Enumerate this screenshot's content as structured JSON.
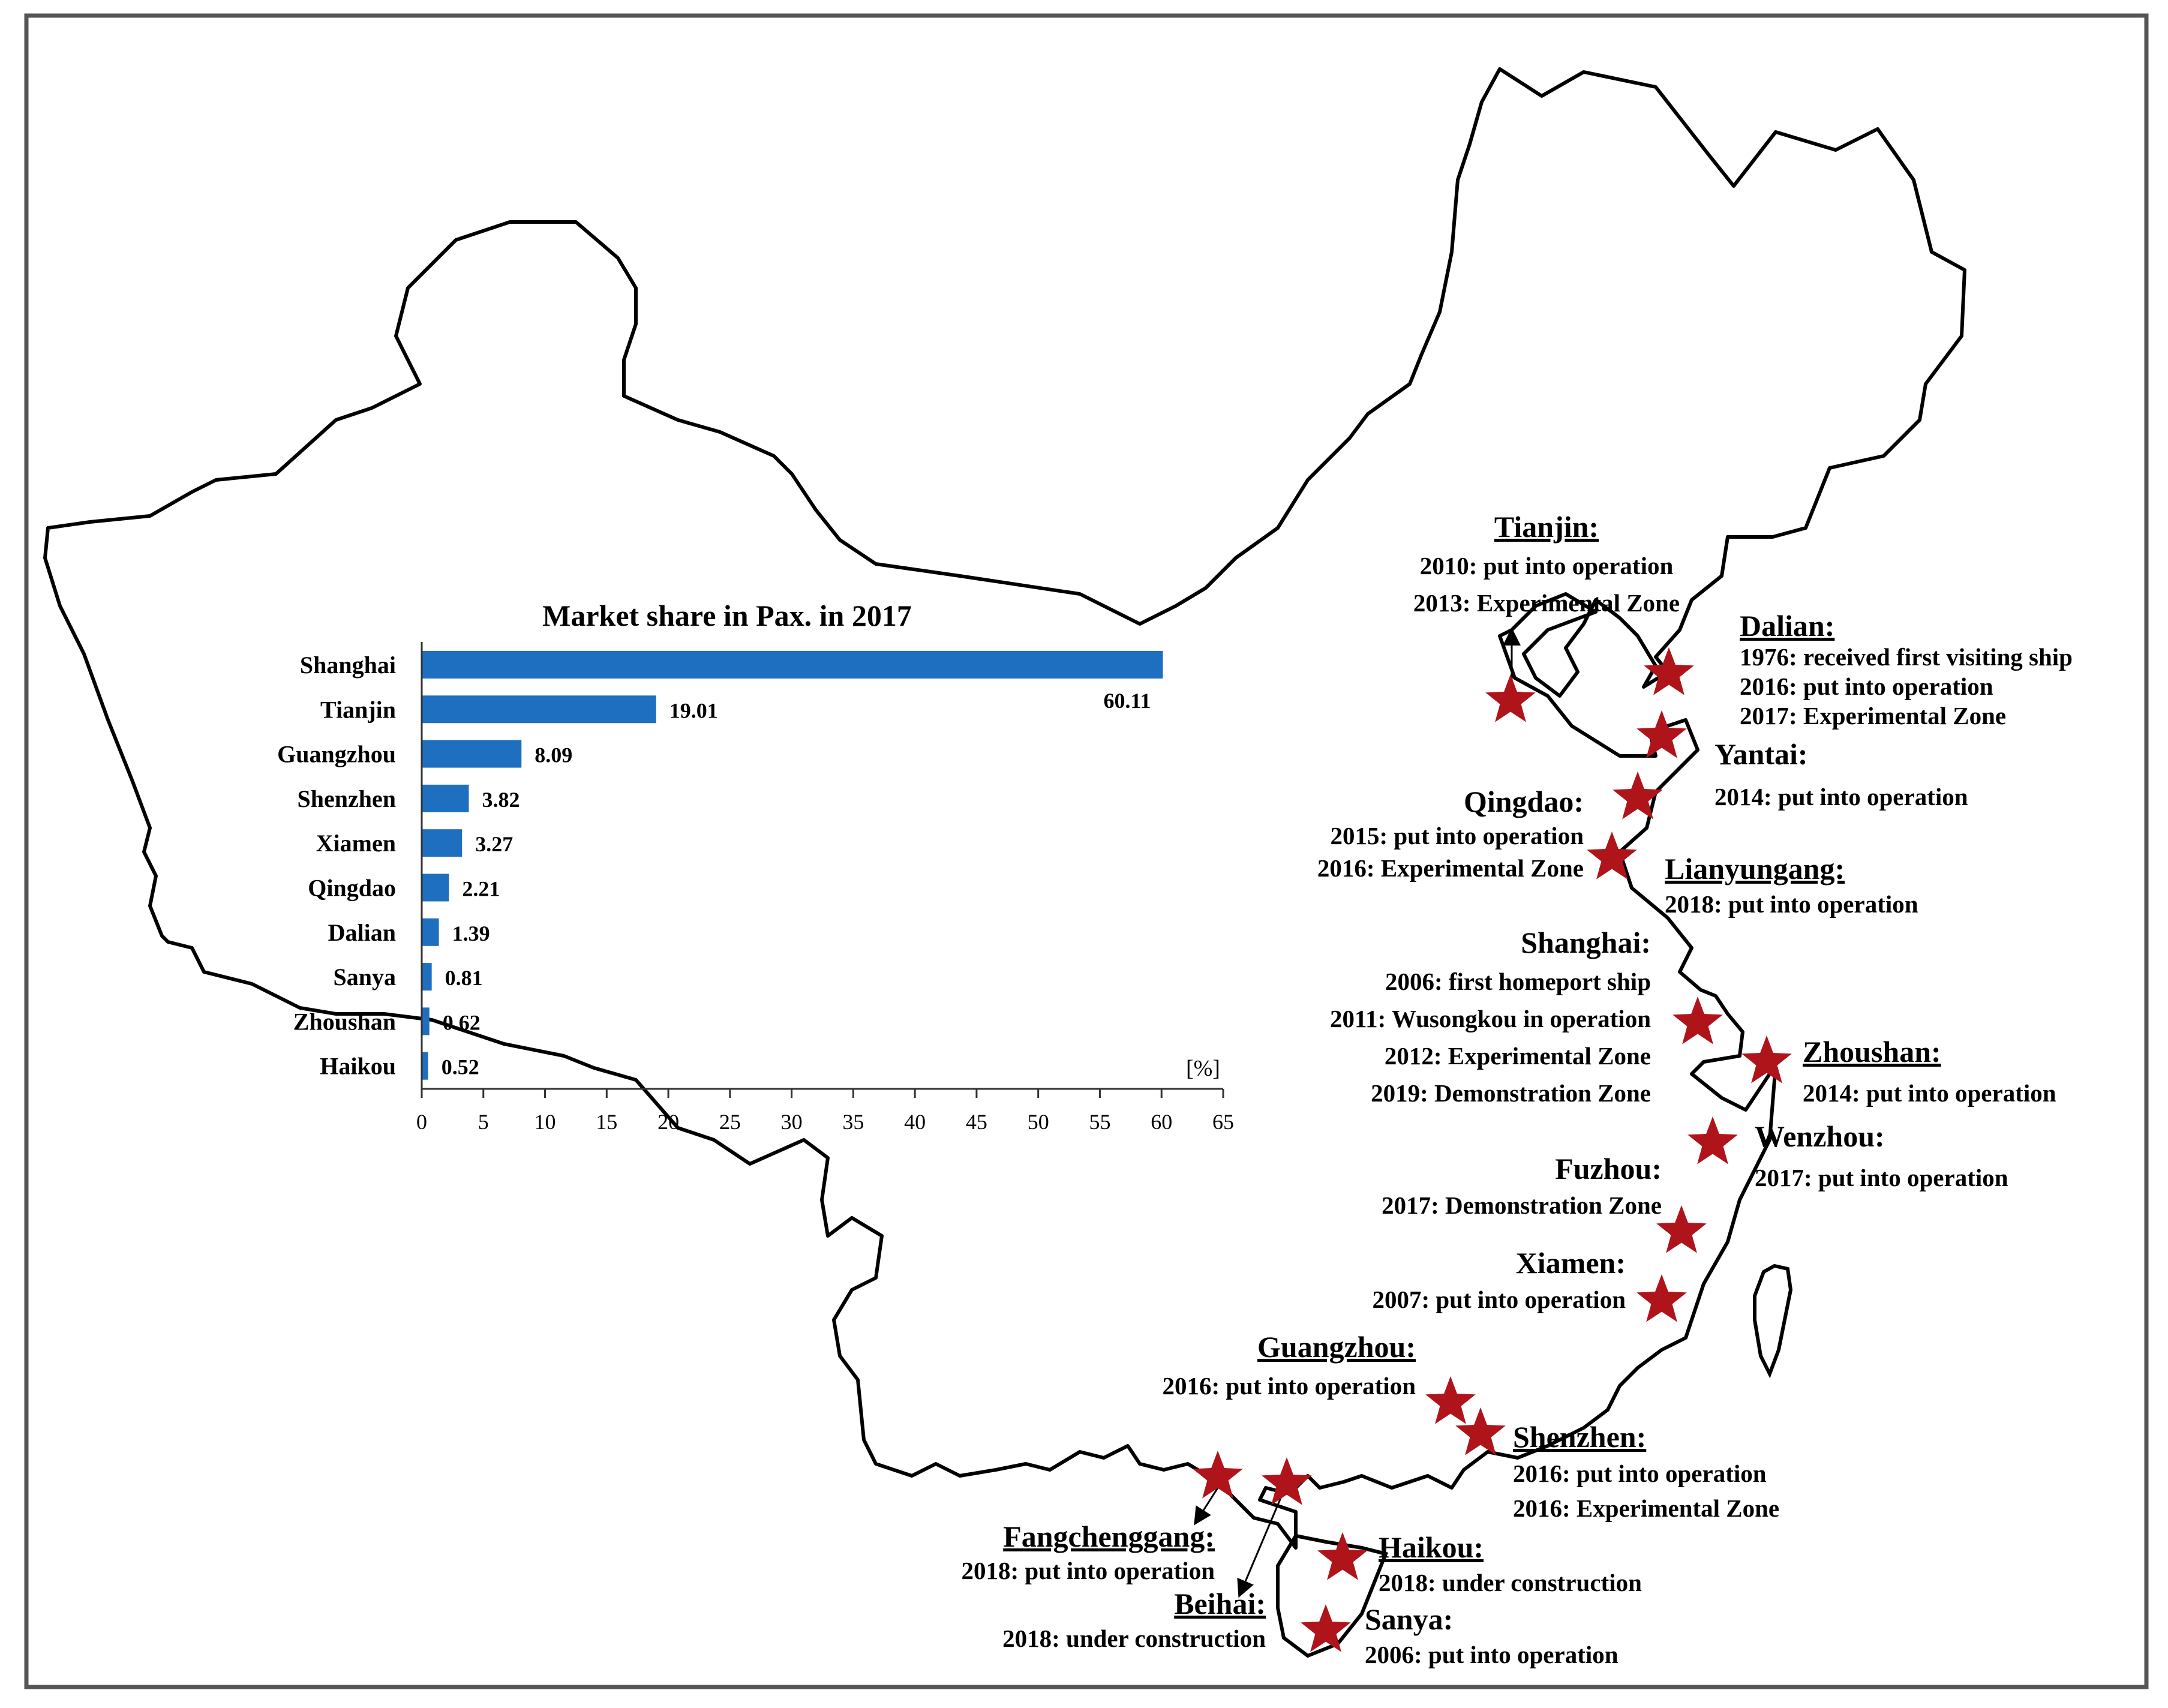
{
  "colors": {
    "bar": "#1f6fc1",
    "star": "#b0141b",
    "outline": "#000000",
    "frame": "#555555"
  },
  "icons": {
    "port_marker": "star-icon",
    "pointer": "arrow-icon"
  },
  "chart_data": {
    "type": "bar",
    "orientation": "horizontal",
    "title": "Market share in Pax. in 2017",
    "xlabel": "[%]",
    "ylabel": "",
    "categories": [
      "Shanghai",
      "Tianjin",
      "Guangzhou",
      "Shenzhen",
      "Xiamen",
      "Qingdao",
      "Dalian",
      "Sanya",
      "Zhoushan",
      "Haikou"
    ],
    "values": [
      60.11,
      19.01,
      8.09,
      3.82,
      3.27,
      2.21,
      1.39,
      0.81,
      0.62,
      0.52
    ],
    "value_labels": [
      "60.11",
      "19.01",
      "8.09",
      "3.82",
      "3.27",
      "2.21",
      "1.39",
      "0.81",
      "0.62",
      "0.52"
    ],
    "xlim": [
      0,
      65
    ],
    "xticks": [
      "0",
      "5",
      "10",
      "15",
      "20",
      "25",
      "30",
      "35",
      "40",
      "45",
      "50",
      "55",
      "60",
      "65"
    ],
    "grid": false,
    "legend": "none"
  },
  "ports": [
    {
      "name": "Tianjin:",
      "underline": true,
      "lines": [
        "2010: put into operation",
        "2013: Experimental Zone"
      ]
    },
    {
      "name": "Dalian:",
      "underline": true,
      "lines": [
        "1976: received first visiting ship",
        "2016: put into operation",
        "2017: Experimental Zone"
      ]
    },
    {
      "name": "Yantai:",
      "underline": false,
      "lines": [
        "2014:   put into operation"
      ]
    },
    {
      "name": "Qingdao:",
      "underline": false,
      "lines": [
        "2015: put into operation",
        "2016: Experimental Zone"
      ]
    },
    {
      "name": "Lianyungang:",
      "underline": true,
      "lines": [
        "2018: put into operation"
      ]
    },
    {
      "name": "Shanghai:",
      "underline": false,
      "lines": [
        "2006: first homeport ship",
        "2011: Wusongkou in operation",
        "2012: Experimental Zone",
        "2019: Demonstration Zone"
      ]
    },
    {
      "name": "Zhoushan:",
      "underline": true,
      "lines": [
        "2014: put into operation"
      ]
    },
    {
      "name": "Wenzhou:",
      "underline": false,
      "lines": [
        "2017: put into operation"
      ]
    },
    {
      "name": "Fuzhou:",
      "underline": false,
      "lines": [
        "2017: Demonstration Zone"
      ]
    },
    {
      "name": "Xiamen:",
      "underline": false,
      "lines": [
        "2007: put into operation"
      ]
    },
    {
      "name": "Guangzhou:",
      "underline": true,
      "lines": [
        "2016: put into operation"
      ]
    },
    {
      "name": "Shenzhen:",
      "underline": true,
      "lines": [
        "2016: put into operation",
        "2016: Experimental Zone"
      ]
    },
    {
      "name": "Fangchenggang:",
      "underline": true,
      "lines": [
        "2018: put into operation"
      ]
    },
    {
      "name": "Beihai:",
      "underline": true,
      "lines": [
        "2018: under construction"
      ]
    },
    {
      "name": "Haikou:",
      "underline": true,
      "lines": [
        "2018: under construction"
      ]
    },
    {
      "name": "Sanya:",
      "underline": false,
      "lines": [
        "2006: put into operation"
      ]
    }
  ]
}
